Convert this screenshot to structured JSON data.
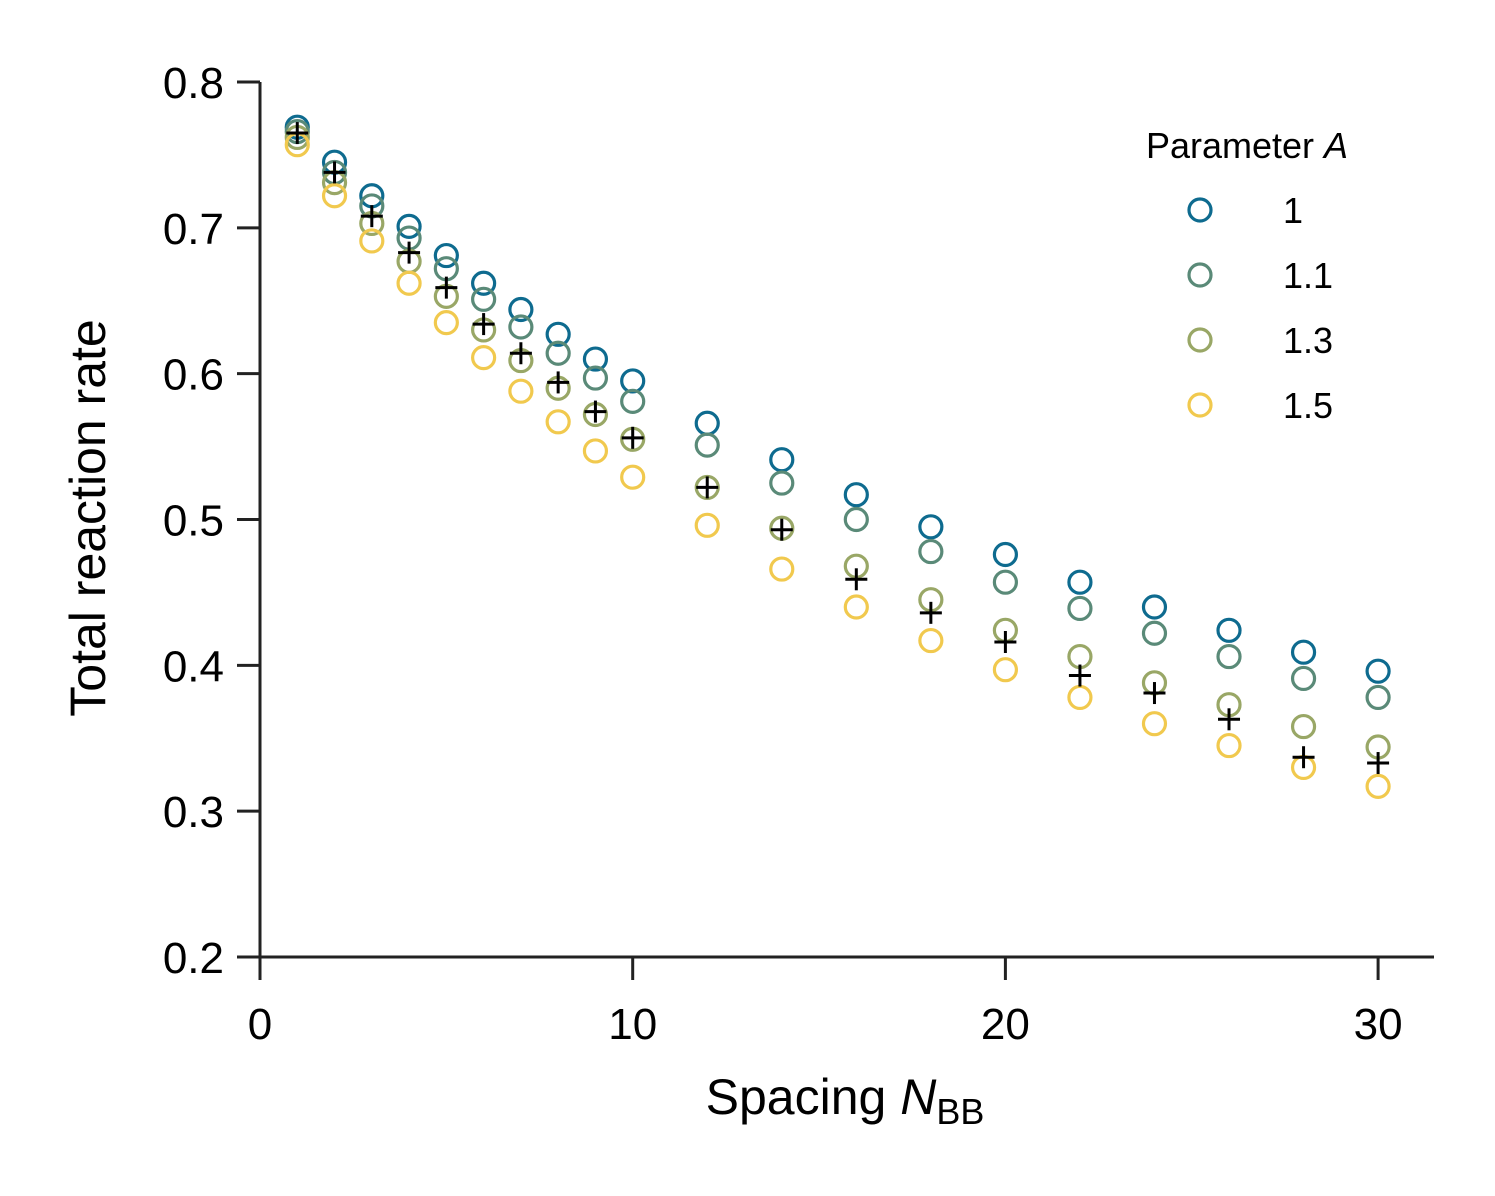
{
  "chart_data": {
    "type": "scatter",
    "title": "",
    "xlabel": "Spacing ",
    "xlabel_var": "N",
    "xlabel_sub": "BB",
    "ylabel": "Total reaction rate",
    "xlim": [
      0,
      31.5
    ],
    "ylim": [
      0.2,
      0.8
    ],
    "xticks": [
      0,
      10,
      20,
      30
    ],
    "xtick_labels": [
      "0",
      "10",
      "20",
      "30"
    ],
    "yticks": [
      0.2,
      0.3,
      0.4,
      0.5,
      0.6,
      0.7,
      0.8
    ],
    "ytick_labels": [
      "0.2",
      "0.3",
      "0.4",
      "0.5",
      "0.6",
      "0.7",
      "0.8"
    ],
    "grid": false,
    "legend": {
      "title": "Parameter ",
      "title_var": "A",
      "placement": "top-right"
    },
    "x": [
      1,
      2,
      3,
      4,
      5,
      6,
      7,
      8,
      9,
      10,
      12,
      14,
      16,
      18,
      20,
      22,
      24,
      26,
      28,
      30
    ],
    "series": [
      {
        "name": "1",
        "color": "#0e6b8f",
        "marker": "open-circle",
        "values": [
          0.769,
          0.745,
          0.722,
          0.701,
          0.681,
          0.662,
          0.644,
          0.627,
          0.61,
          0.595,
          0.566,
          0.541,
          0.517,
          0.495,
          0.476,
          0.457,
          0.44,
          0.424,
          0.409,
          0.396
        ]
      },
      {
        "name": "1.1",
        "color": "#5a8a78",
        "marker": "open-circle",
        "values": [
          0.766,
          0.738,
          0.715,
          0.693,
          0.672,
          0.651,
          0.632,
          0.614,
          0.597,
          0.581,
          0.551,
          0.525,
          0.5,
          0.478,
          0.457,
          0.439,
          0.422,
          0.406,
          0.391,
          0.378
        ]
      },
      {
        "name": "1.3",
        "color": "#99a766",
        "marker": "open-circle",
        "values": [
          0.762,
          0.731,
          0.703,
          0.677,
          0.653,
          0.63,
          0.609,
          0.59,
          0.572,
          0.555,
          0.522,
          0.494,
          0.468,
          0.445,
          0.424,
          0.406,
          0.388,
          0.373,
          0.358,
          0.344
        ]
      },
      {
        "name": "1.5",
        "color": "#f1c94e",
        "marker": "open-circle",
        "values": [
          0.757,
          0.722,
          0.691,
          0.662,
          0.635,
          0.611,
          0.588,
          0.567,
          0.547,
          0.529,
          0.496,
          0.466,
          0.44,
          0.417,
          0.397,
          0.378,
          0.36,
          0.345,
          0.33,
          0.317
        ]
      },
      {
        "name": "",
        "color": "#000000",
        "marker": "plus",
        "values": [
          0.765,
          0.738,
          0.708,
          0.683,
          0.659,
          0.634,
          0.614,
          0.594,
          0.574,
          0.556,
          0.522,
          0.493,
          0.459,
          0.436,
          0.416,
          0.393,
          0.381,
          0.363,
          0.337,
          0.333
        ]
      }
    ]
  }
}
